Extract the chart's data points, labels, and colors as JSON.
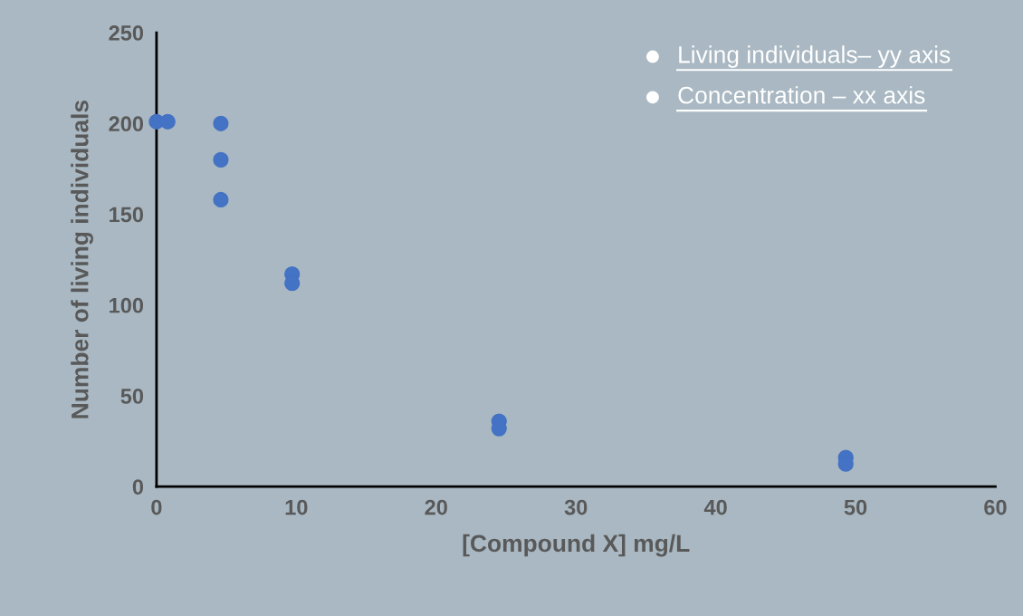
{
  "chart_data": {
    "type": "scatter",
    "xlabel": "[Compound X] mg/L",
    "ylabel": "Number of living individuals",
    "x": [
      0,
      0.8,
      4.6,
      4.6,
      4.6,
      9.7,
      9.7,
      24.5,
      24.5,
      49.3,
      49.3
    ],
    "series": [
      {
        "color": "#4472c4",
        "values": [
          201,
          201,
          200,
          180,
          158,
          117,
          112,
          36,
          32,
          16,
          12.5
        ]
      }
    ],
    "xlim": [
      0,
      60
    ],
    "xticks": [
      0,
      10,
      20,
      30,
      40,
      50,
      60
    ],
    "ylim": [
      0,
      250
    ],
    "yticks": [
      0,
      50,
      100,
      150,
      200,
      250
    ],
    "marker": "circle",
    "grid": false,
    "annotations": [
      "Living individuals– yy axis",
      "Concentration – xx axis"
    ]
  }
}
